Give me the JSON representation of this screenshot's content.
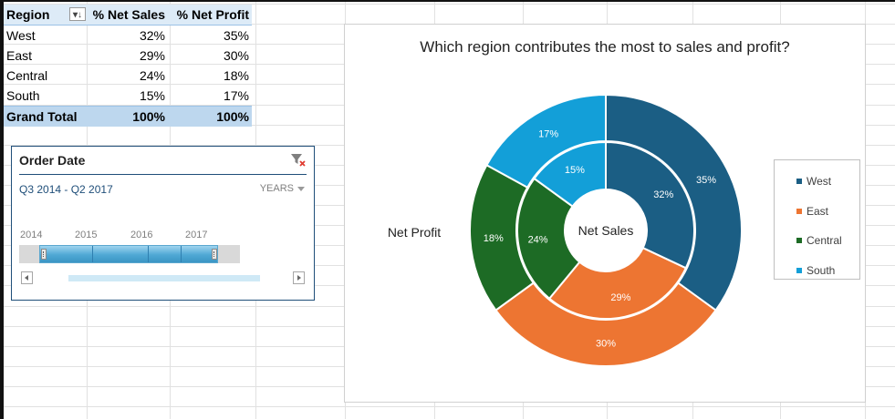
{
  "pivot": {
    "headers": [
      "Region",
      "% Net Sales",
      "% Net Profit"
    ],
    "rows": [
      {
        "region": "West",
        "sales": "32%",
        "profit": "35%"
      },
      {
        "region": "East",
        "sales": "29%",
        "profit": "30%"
      },
      {
        "region": "Central",
        "sales": "24%",
        "profit": "18%"
      },
      {
        "region": "South",
        "sales": "15%",
        "profit": "17%"
      }
    ],
    "total": {
      "label": "Grand Total",
      "sales": "100%",
      "profit": "100%"
    },
    "filter_icon": "sort-filter-icon"
  },
  "timeline": {
    "title": "Order Date",
    "range": "Q3 2014  - Q2 2017",
    "level": "YEARS",
    "years": [
      "2014",
      "2015",
      "2016",
      "2017"
    ],
    "clear_icon": "clear-filter-icon"
  },
  "chart_data": {
    "type": "pie",
    "subtype": "doughnut",
    "title": "Which region contributes the most to sales and profit?",
    "center_label": "Net Sales",
    "outer_ring_label": "Net Profit",
    "categories": [
      "West",
      "East",
      "Central",
      "South"
    ],
    "colors": [
      "#1b5e84",
      "#ed7532",
      "#1d6b25",
      "#139fd8"
    ],
    "series": [
      {
        "name": "Net Sales",
        "ring": "inner",
        "values": [
          32,
          29,
          24,
          15
        ],
        "labels": [
          "32%",
          "29%",
          "24%",
          "15%"
        ]
      },
      {
        "name": "Net Profit",
        "ring": "outer",
        "values": [
          35,
          30,
          18,
          17
        ],
        "labels": [
          "35%",
          "30%",
          "18%",
          "17%"
        ]
      }
    ],
    "legend": {
      "position": "right",
      "entries": [
        "West",
        "East",
        "Central",
        "South"
      ]
    }
  }
}
